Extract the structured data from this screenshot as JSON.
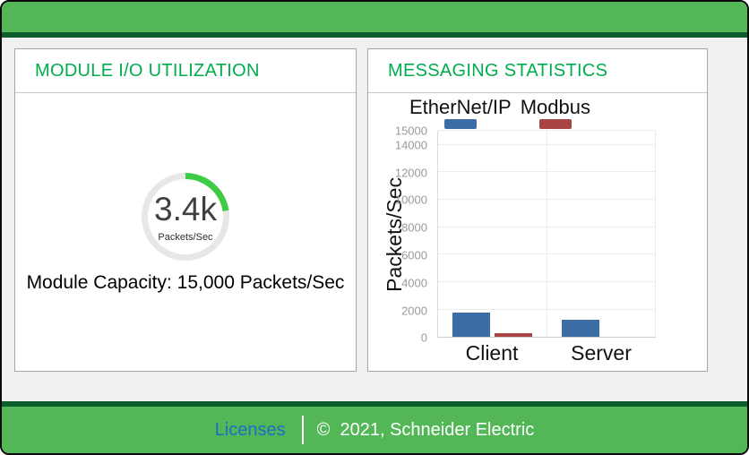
{
  "panels": {
    "io": {
      "title": "MODULE I/O UTILIZATION",
      "gauge": {
        "value_label": "3.4k",
        "unit_label": "Packets/Sec",
        "value": 3400,
        "capacity": 15000,
        "arc_color": "#3ecb45",
        "track_color": "#e7e7e7"
      },
      "capacity_text": "Module Capacity: 15,000 Packets/Sec"
    },
    "messaging": {
      "title": "MESSAGING STATISTICS"
    }
  },
  "chart_data": {
    "type": "bar",
    "categories": [
      "Client",
      "Server"
    ],
    "series": [
      {
        "name": "EtherNet/IP",
        "color": "#3d6da6",
        "values": [
          1800,
          1250
        ]
      },
      {
        "name": "Modbus",
        "color": "#a94444",
        "values": [
          250,
          0
        ]
      }
    ],
    "title": "",
    "xlabel": "",
    "ylabel": "Packets/Sec",
    "ylim": [
      0,
      15000
    ],
    "yticks": [
      0,
      2000,
      4000,
      6000,
      8000,
      10000,
      12000,
      14000,
      15000
    ],
    "grid": true,
    "legend_position": "top"
  },
  "footer": {
    "licenses_label": "Licenses",
    "copyright": "©  2021, Schneider Electric"
  },
  "colors": {
    "brand_green": "#53b757",
    "brand_dark_green": "#0c5d2b",
    "title_green": "#00ad4d",
    "link_blue": "#1a6fc4"
  }
}
